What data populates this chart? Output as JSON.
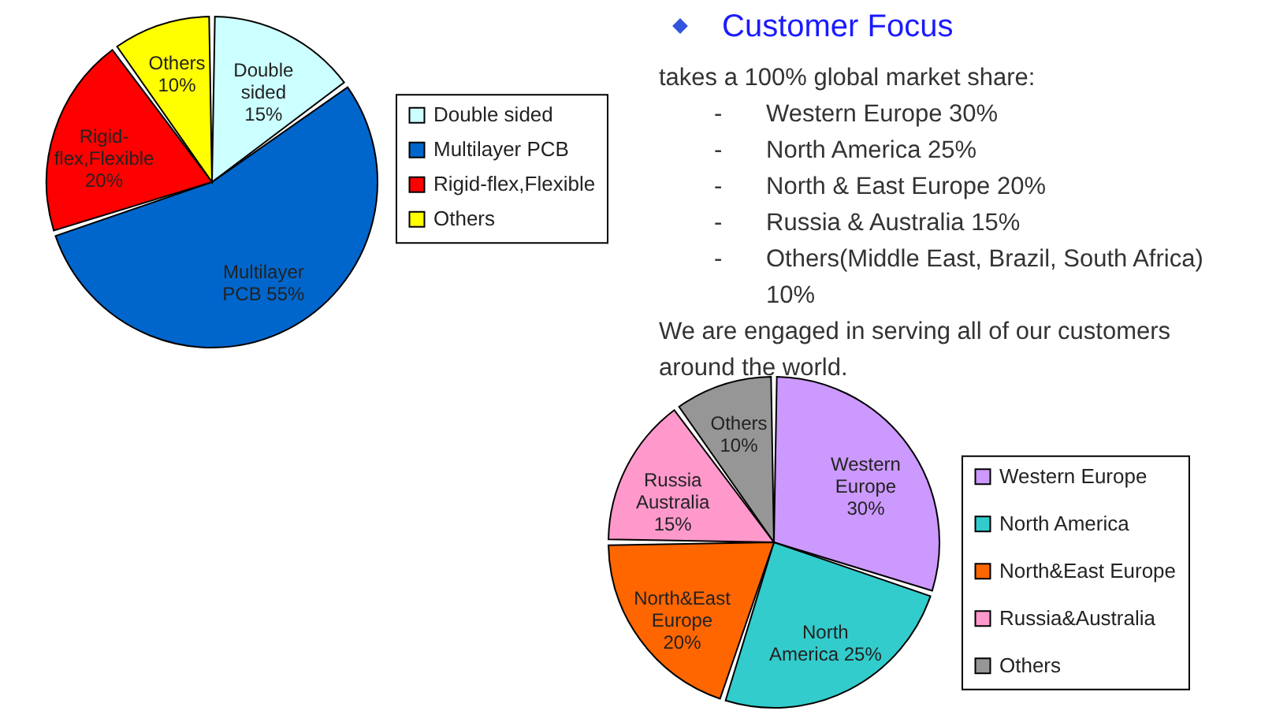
{
  "chart_data": [
    {
      "type": "pie",
      "categories": [
        "Double sided",
        "Multilayer PCB",
        "Rigid-flex,Flexible",
        "Others"
      ],
      "values": [
        15,
        55,
        20,
        10
      ],
      "colors": [
        "#ccffff",
        "#0066cc",
        "#ff0000",
        "#ffff00"
      ],
      "value_labels": [
        "Double\nsided\n15%",
        "Multilayer\nPCB 55%",
        "Rigid-\nflex,Flexible\n20%",
        "Others\n10%"
      ],
      "legend": "right"
    },
    {
      "type": "pie",
      "categories": [
        "Western Europe",
        "North America",
        "North&East Europe",
        "Russia&Australia",
        "Others"
      ],
      "values": [
        30,
        25,
        20,
        15,
        10
      ],
      "colors": [
        "#cc99ff",
        "#33cccc",
        "#ff6600",
        "#ff99cc",
        "#969696"
      ],
      "value_labels": [
        "Western\nEurope\n30%",
        "North\nAmerica 25%",
        "North&East\nEurope\n20%",
        "Russia\nAustralia\n15%",
        "Others\n10%"
      ],
      "legend": "right"
    },
    {
      "type": "other",
      "title": "Customer Focus",
      "annotations": [
        "takes a 100% global market share:",
        "- Western Europe 30%",
        "- North America 25%",
        "- North & East Europe 20%",
        "- Russia & Australia 15%",
        "- Others(Middle East, Brazil, South Africa) 10%",
        "We are engaged in serving all of our customers around the world."
      ]
    }
  ]
}
